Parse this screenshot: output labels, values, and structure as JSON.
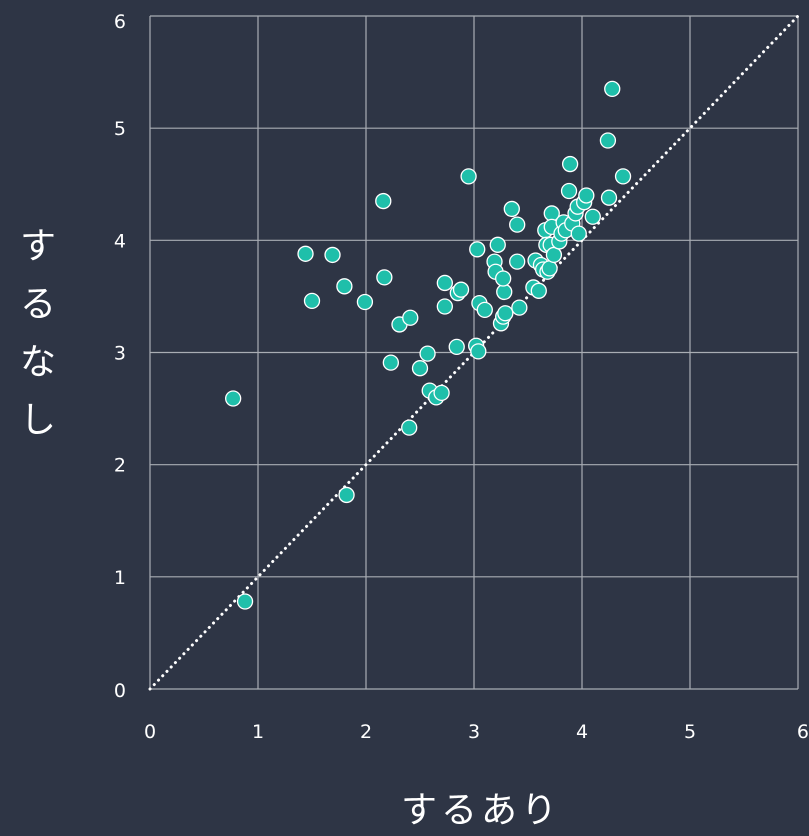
{
  "chart_data": {
    "type": "scatter",
    "xlabel": "するあり",
    "ylabel": "するなし",
    "xlim": [
      0,
      6
    ],
    "ylim": [
      0,
      6
    ],
    "x_ticks": [
      "0",
      "1",
      "2",
      "3",
      "4",
      "5",
      "6"
    ],
    "y_ticks": [
      "0",
      "1",
      "2",
      "3",
      "4",
      "5",
      "6"
    ],
    "grid": true,
    "reference_line": "y = x",
    "colors": {
      "background": "#2e3545",
      "grid": "#a9adb4",
      "point_fill": "#1fbfaa",
      "point_stroke": "#ffffff",
      "text": "#ffffff"
    },
    "points": [
      [
        0.77,
        2.59
      ],
      [
        0.88,
        0.78
      ],
      [
        1.44,
        3.88
      ],
      [
        1.5,
        3.46
      ],
      [
        1.69,
        3.87
      ],
      [
        1.8,
        3.59
      ],
      [
        1.82,
        1.73
      ],
      [
        1.99,
        3.45
      ],
      [
        2.16,
        4.35
      ],
      [
        2.17,
        3.67
      ],
      [
        2.23,
        2.91
      ],
      [
        2.31,
        3.25
      ],
      [
        2.41,
        3.31
      ],
      [
        2.4,
        2.33
      ],
      [
        2.5,
        2.86
      ],
      [
        2.57,
        2.99
      ],
      [
        2.59,
        2.66
      ],
      [
        2.65,
        2.6
      ],
      [
        2.7,
        2.64
      ],
      [
        2.73,
        3.41
      ],
      [
        2.73,
        3.62
      ],
      [
        2.85,
        3.53
      ],
      [
        2.88,
        3.56
      ],
      [
        2.84,
        3.05
      ],
      [
        2.95,
        4.57
      ],
      [
        3.02,
        3.06
      ],
      [
        3.04,
        3.01
      ],
      [
        3.03,
        3.92
      ],
      [
        3.05,
        3.44
      ],
      [
        3.1,
        3.38
      ],
      [
        3.19,
        3.81
      ],
      [
        3.2,
        3.72
      ],
      [
        3.22,
        3.96
      ],
      [
        3.25,
        3.26
      ],
      [
        3.27,
        3.32
      ],
      [
        3.28,
        3.54
      ],
      [
        3.27,
        3.66
      ],
      [
        3.29,
        3.35
      ],
      [
        3.35,
        4.28
      ],
      [
        3.4,
        4.14
      ],
      [
        3.4,
        3.81
      ],
      [
        3.42,
        3.4
      ],
      [
        3.55,
        3.58
      ],
      [
        3.57,
        3.82
      ],
      [
        3.6,
        3.55
      ],
      [
        3.62,
        3.78
      ],
      [
        3.64,
        3.74
      ],
      [
        3.66,
        4.09
      ],
      [
        3.67,
        3.96
      ],
      [
        3.68,
        3.72
      ],
      [
        3.7,
        3.75
      ],
      [
        3.71,
        3.96
      ],
      [
        3.72,
        4.24
      ],
      [
        3.72,
        4.12
      ],
      [
        3.74,
        3.87
      ],
      [
        3.79,
        3.99
      ],
      [
        3.81,
        4.06
      ],
      [
        3.83,
        4.16
      ],
      [
        3.85,
        4.09
      ],
      [
        3.88,
        4.44
      ],
      [
        3.89,
        4.68
      ],
      [
        3.91,
        4.15
      ],
      [
        3.94,
        4.24
      ],
      [
        3.96,
        4.3
      ],
      [
        3.97,
        4.06
      ],
      [
        4.02,
        4.34
      ],
      [
        4.04,
        4.4
      ],
      [
        4.1,
        4.21
      ],
      [
        4.24,
        4.89
      ],
      [
        4.25,
        4.38
      ],
      [
        4.28,
        5.35
      ],
      [
        4.38,
        4.57
      ]
    ]
  }
}
